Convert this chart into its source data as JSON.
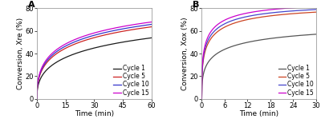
{
  "panel_A": {
    "label": "A",
    "xlabel": "Time (min)",
    "ylabel": "Conversion, Xre (%)",
    "xlim": [
      0,
      60
    ],
    "ylim": [
      0,
      80
    ],
    "xticks": [
      0,
      15,
      30,
      45,
      60
    ],
    "yticks": [
      0,
      20,
      40,
      60,
      80
    ],
    "curves": [
      {
        "name": "Cycle 1",
        "color": "#1a1a1a",
        "k": 0.18,
        "n": 0.42,
        "ymax": 85.0
      },
      {
        "name": "Cycle 5",
        "color": "#cc2222",
        "k": 0.22,
        "n": 0.42,
        "ymax": 90.0
      },
      {
        "name": "Cycle 10",
        "color": "#3333cc",
        "k": 0.23,
        "n": 0.42,
        "ymax": 91.0
      },
      {
        "name": "Cycle 15",
        "color": "#cc00cc",
        "k": 0.24,
        "n": 0.42,
        "ymax": 92.0
      }
    ]
  },
  "panel_B": {
    "label": "B",
    "xlabel": "Time (min)",
    "ylabel": "Conversion, Xox (%)",
    "xlim": [
      0,
      30
    ],
    "ylim": [
      0,
      80
    ],
    "xticks": [
      0,
      6,
      12,
      18,
      24,
      30
    ],
    "yticks": [
      0,
      20,
      40,
      60,
      80
    ],
    "curves": [
      {
        "name": "Cycle 1",
        "color": "#555555",
        "k": 0.55,
        "n": 0.38,
        "ymax": 66.0
      },
      {
        "name": "Cycle 5",
        "color": "#cc4422",
        "k": 0.75,
        "n": 0.38,
        "ymax": 82.0
      },
      {
        "name": "Cycle 10",
        "color": "#4444cc",
        "k": 0.8,
        "n": 0.38,
        "ymax": 83.5
      },
      {
        "name": "Cycle 15",
        "color": "#cc00cc",
        "k": 0.85,
        "n": 0.38,
        "ymax": 85.5
      }
    ]
  },
  "background_color": "#ffffff",
  "fontsize_label": 6.5,
  "fontsize_tick": 6,
  "fontsize_legend": 5.5,
  "fontsize_panel_label": 8,
  "line_width": 0.9
}
